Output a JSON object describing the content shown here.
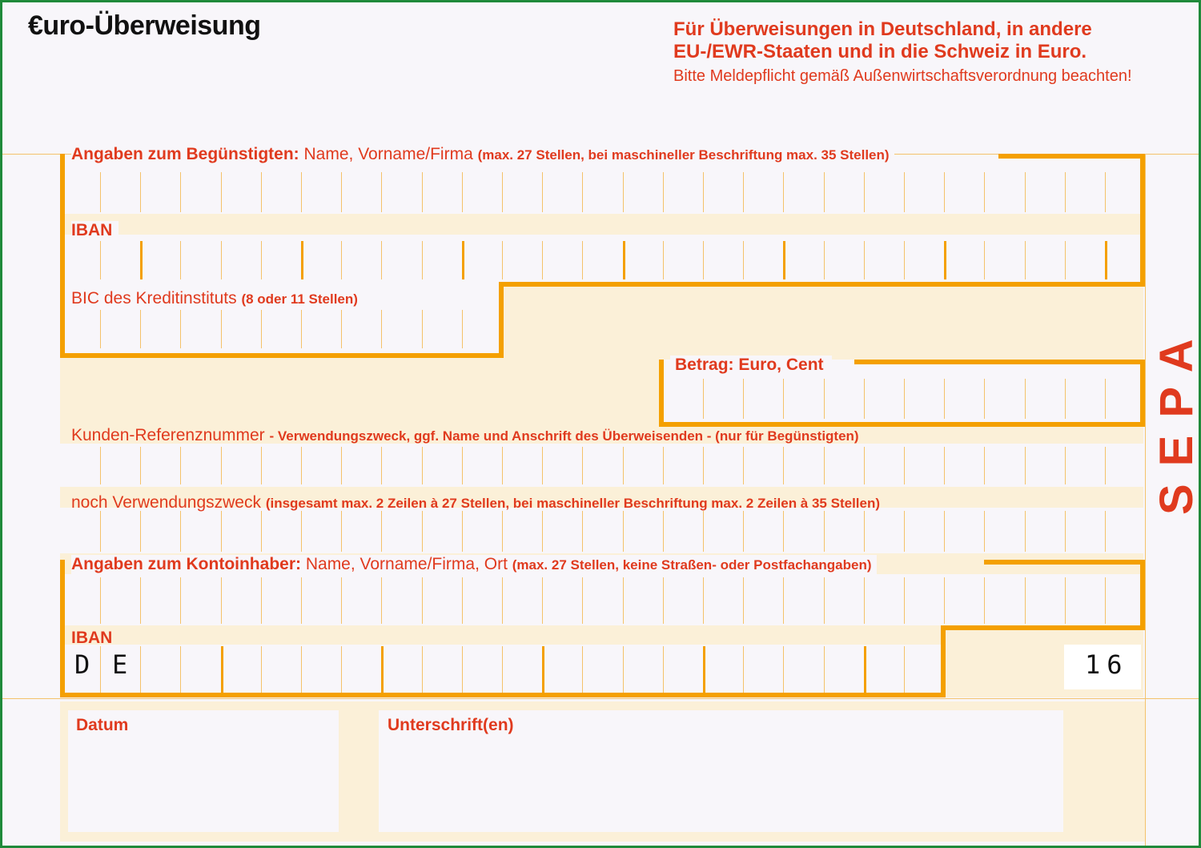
{
  "form": {
    "title": "€uro-Überweisung",
    "header_line1": "Für Überweisungen in Deutschland, in andere",
    "header_line2": "EU-/EWR-Staaten und in die Schweiz in Euro.",
    "header_line3": "Bitte Meldepflicht gemäß Außenwirtschaftsverordnung beachten!",
    "sepa_label": "SEPA",
    "accent_color": "#e03a1e",
    "frame_color": "#f4a000",
    "border_color": "#1f8a3a"
  },
  "beneficiary": {
    "label_bold": "Angaben zum Begünstigten:",
    "label_normal": "Name, Vorname/Firma",
    "label_small": "(max. 27 Stellen, bei maschineller Beschriftung max. 35 Stellen)",
    "value": ""
  },
  "iban": {
    "label": "IBAN",
    "value": ""
  },
  "bic": {
    "label_normal": "BIC des Kreditinstituts",
    "label_small": "(8 oder 11 Stellen)",
    "value": ""
  },
  "amount": {
    "label": "Betrag: Euro, Cent",
    "value": ""
  },
  "reference": {
    "label_normal": "Kunden-Referenznummer",
    "label_small": "- Verwendungszweck, ggf. Name und Anschrift des Überweisenden - (nur für Begünstigten)",
    "value": ""
  },
  "purpose2": {
    "label_normal": "noch Verwendungszweck",
    "label_small": "(insgesamt max. 2 Zeilen à 27 Stellen, bei maschineller Beschriftung max. 2 Zeilen à 35 Stellen)",
    "value": ""
  },
  "account_holder": {
    "label_bold": "Angaben zum Kontoinhaber:",
    "label_normal": "Name, Vorname/Firma, Ort",
    "label_small": "(max. 27 Stellen, keine Straßen- oder Postfachangaben)",
    "value": ""
  },
  "holder_iban": {
    "label": "IBAN",
    "prefix_1": "D",
    "prefix_2": "E",
    "suffix": "16",
    "value": ""
  },
  "footer": {
    "date_label": "Datum",
    "signature_label": "Unterschrift(en)"
  }
}
